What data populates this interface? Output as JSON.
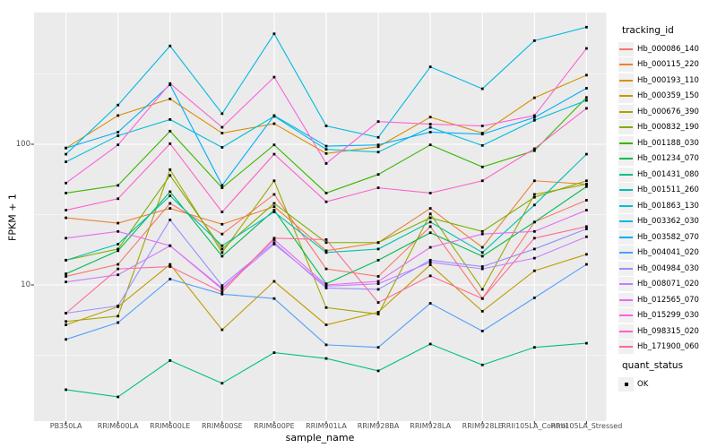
{
  "colors": {
    "panel_bg": "#EBEBEB",
    "grid": "#FFFFFF",
    "tick_mark": "#333333",
    "tick_text": "#4D4D4D",
    "point": "#000000",
    "legend_key_bg": "#F0F0F0"
  },
  "chart_data": {
    "type": "line",
    "title": "",
    "xlabel": "sample_name",
    "ylabel": "FPKM + 1",
    "y_scale": "log10",
    "ylim": [
      1.1,
      860
    ],
    "grid": "on",
    "legend_position": "right",
    "point_marker": "black-square",
    "y_ticks": [
      {
        "label": "100",
        "value": 100
      },
      {
        "label": "10",
        "value": 10
      }
    ],
    "major_grid_values": [
      100,
      10
    ],
    "minor_grid_values": [
      316.2,
      31.62,
      3.162
    ],
    "categories": [
      "PB350LA",
      "RRIM600LA",
      "RRIM600LE",
      "RRIM600SE",
      "RRIM600PE",
      "RRIM901LA",
      "RRIM928BA",
      "RRIM928LA",
      "RRIM928LE",
      "RRII105LA_Control",
      "RRII105LA_Stressed"
    ],
    "legend": {
      "series_title": "tracking_id",
      "status_title": "quant_status",
      "status_items": [
        {
          "label": "OK",
          "marker": "black-square"
        }
      ]
    },
    "series": [
      {
        "id": "Hb_000086_140",
        "color": "#F8766D",
        "values": [
          11.5,
          14,
          38,
          23,
          44,
          13,
          11.5,
          26,
          8,
          28,
          40
        ]
      },
      {
        "id": "Hb_000115_220",
        "color": "#EA8331",
        "values": [
          30,
          27.5,
          35,
          27,
          36,
          17.5,
          20,
          35,
          18.5,
          55,
          52
        ]
      },
      {
        "id": "Hb_000193_110",
        "color": "#D89000",
        "values": [
          94,
          160,
          210,
          120,
          140,
          86,
          96,
          156,
          120,
          214,
          310
        ]
      },
      {
        "id": "Hb_000359_150",
        "color": "#C09B00",
        "values": [
          5.2,
          7,
          14,
          4.8,
          10.6,
          5.2,
          6.4,
          13.9,
          6.5,
          12.6,
          16.5
        ]
      },
      {
        "id": "Hb_000676_390",
        "color": "#A3A500",
        "values": [
          5.5,
          6,
          66,
          17,
          55,
          6.9,
          6.2,
          32,
          9.3,
          44,
          52
        ]
      },
      {
        "id": "Hb_000832_190",
        "color": "#7CAE00",
        "values": [
          15,
          18,
          60,
          18,
          38,
          20,
          20,
          30,
          24,
          42,
          55
        ]
      },
      {
        "id": "Hb_001188_030",
        "color": "#39B600",
        "values": [
          45,
          51,
          124,
          49,
          99,
          45,
          61,
          99,
          69,
          90,
          215
        ]
      },
      {
        "id": "Hb_001234_070",
        "color": "#00BB4E",
        "values": [
          12,
          17.5,
          46,
          16,
          34,
          10.2,
          15,
          23.5,
          16,
          28,
          50
        ]
      },
      {
        "id": "Hb_001431_080",
        "color": "#00C087",
        "values": [
          1.8,
          1.6,
          2.9,
          2,
          3.3,
          3,
          2.45,
          3.8,
          2.7,
          3.6,
          3.85
        ]
      },
      {
        "id": "Hb_001511_260",
        "color": "#00C0B2",
        "values": [
          15,
          19.5,
          43,
          19,
          33,
          17,
          18,
          28,
          17,
          37,
          85
        ]
      },
      {
        "id": "Hb_001863_130",
        "color": "#00BFD6",
        "values": [
          75,
          115,
          150,
          95,
          158,
          92,
          88,
          132,
          98,
          148,
          205
        ]
      },
      {
        "id": "Hb_003362_030",
        "color": "#00B9E3",
        "values": [
          85,
          190,
          500,
          165,
          610,
          135,
          112,
          355,
          248,
          545,
          680
        ]
      },
      {
        "id": "Hb_003582_070",
        "color": "#00ACFC",
        "values": [
          94,
          122,
          265,
          51,
          160,
          97,
          99,
          122,
          118,
          155,
          250
        ]
      },
      {
        "id": "Hb_004041_020",
        "color": "#529EFF",
        "values": [
          4.1,
          5.4,
          11,
          8.6,
          8,
          3.75,
          3.6,
          7.4,
          4.7,
          8.1,
          14
        ]
      },
      {
        "id": "Hb_004984_030",
        "color": "#9590FF",
        "values": [
          6.3,
          7.1,
          29,
          9.9,
          20,
          9.5,
          9.3,
          15,
          13.5,
          18,
          25
        ]
      },
      {
        "id": "Hb_008071_020",
        "color": "#C77CFF",
        "values": [
          10.5,
          11.8,
          19,
          9.5,
          19.5,
          9.8,
          10.2,
          14.5,
          13,
          15.5,
          22
        ]
      },
      {
        "id": "Hb_012565_070",
        "color": "#E76BF3",
        "values": [
          21.5,
          24,
          19,
          9.3,
          21,
          10,
          10.6,
          18.5,
          23,
          24,
          34
        ]
      },
      {
        "id": "Hb_015299_030",
        "color": "#FA62DB",
        "values": [
          53,
          99,
          270,
          132,
          300,
          73,
          145,
          139,
          135,
          160,
          480
        ]
      },
      {
        "id": "Hb_098315_020",
        "color": "#FF61C9",
        "values": [
          34,
          41,
          101,
          33,
          85,
          39,
          49,
          45,
          55,
          93,
          180
        ]
      },
      {
        "id": "Hb_171900_060",
        "color": "#FF6A98",
        "values": [
          6.3,
          13,
          13.5,
          8.9,
          21.5,
          21,
          7.5,
          11.6,
          8,
          21.5,
          26
        ]
      }
    ]
  }
}
